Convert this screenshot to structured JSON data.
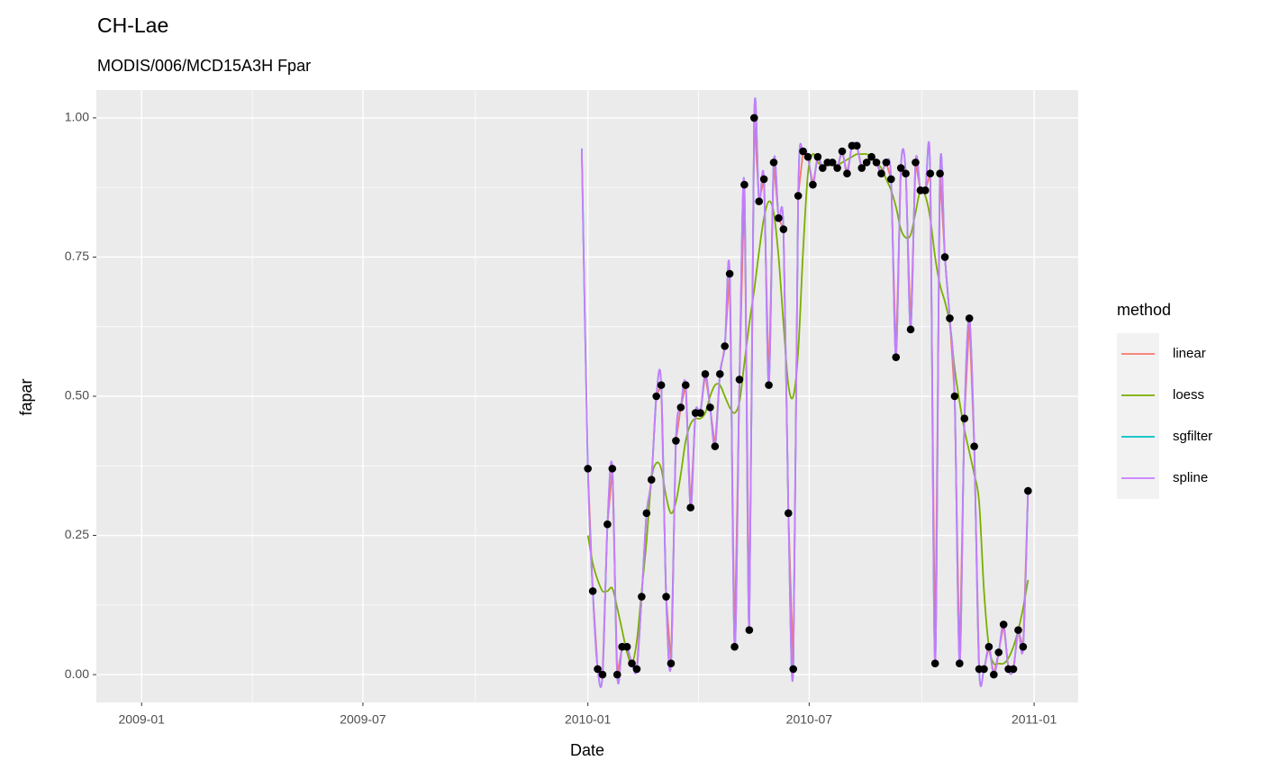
{
  "chart_data": {
    "type": "line",
    "title": "CH-Lae",
    "subtitle": "MODIS/006/MCD15A3H Fpar",
    "x_label": "Date",
    "y_label": "fapar",
    "legend_title": "method",
    "legend_position": "right",
    "grid": true,
    "xlim": [
      "2008-11-25",
      "2011-02-06"
    ],
    "xticks": [
      {
        "value": "2009-01-01",
        "label": "2009-01"
      },
      {
        "value": "2009-07-01",
        "label": "2009-07"
      },
      {
        "value": "2010-01-01",
        "label": "2010-01"
      },
      {
        "value": "2010-07-01",
        "label": "2010-07"
      },
      {
        "value": "2011-01-01",
        "label": "2011-01"
      }
    ],
    "ylim": [
      -0.05,
      1.05
    ],
    "yticks": [
      {
        "value": 0,
        "label": "0.00"
      },
      {
        "value": 0.25,
        "label": "0.25"
      },
      {
        "value": 0.5,
        "label": "0.50"
      },
      {
        "value": 0.75,
        "label": "0.75"
      },
      {
        "value": 1,
        "label": "1.00"
      }
    ],
    "x": [
      "2009-12-27",
      "2010-01-01",
      "2010-01-05",
      "2010-01-09",
      "2010-01-13",
      "2010-01-17",
      "2010-01-21",
      "2010-01-25",
      "2010-01-29",
      "2010-02-02",
      "2010-02-06",
      "2010-02-10",
      "2010-02-14",
      "2010-02-18",
      "2010-02-22",
      "2010-02-26",
      "2010-03-02",
      "2010-03-06",
      "2010-03-10",
      "2010-03-14",
      "2010-03-18",
      "2010-03-22",
      "2010-03-26",
      "2010-03-30",
      "2010-04-03",
      "2010-04-07",
      "2010-04-11",
      "2010-04-15",
      "2010-04-19",
      "2010-04-23",
      "2010-04-27",
      "2010-05-01",
      "2010-05-05",
      "2010-05-09",
      "2010-05-13",
      "2010-05-17",
      "2010-05-21",
      "2010-05-25",
      "2010-05-29",
      "2010-06-02",
      "2010-06-06",
      "2010-06-10",
      "2010-06-14",
      "2010-06-18",
      "2010-06-22",
      "2010-06-26",
      "2010-06-30",
      "2010-07-04",
      "2010-07-08",
      "2010-07-12",
      "2010-07-16",
      "2010-07-20",
      "2010-07-24",
      "2010-07-28",
      "2010-08-01",
      "2010-08-05",
      "2010-08-09",
      "2010-08-13",
      "2010-08-17",
      "2010-08-21",
      "2010-08-25",
      "2010-08-29",
      "2010-09-02",
      "2010-09-06",
      "2010-09-10",
      "2010-09-14",
      "2010-09-18",
      "2010-09-22",
      "2010-09-26",
      "2010-09-30",
      "2010-10-04",
      "2010-10-08",
      "2010-10-12",
      "2010-10-16",
      "2010-10-20",
      "2010-10-24",
      "2010-10-28",
      "2010-11-01",
      "2010-11-05",
      "2010-11-09",
      "2010-11-13",
      "2010-11-17",
      "2010-11-21",
      "2010-11-25",
      "2010-11-29",
      "2010-12-03",
      "2010-12-07",
      "2010-12-11",
      "2010-12-15",
      "2010-12-19",
      "2010-12-23",
      "2010-12-27"
    ],
    "points": {
      "color": "#000000",
      "values": [
        null,
        0.37,
        0.15,
        0.01,
        0.0,
        0.27,
        0.37,
        0.0,
        0.05,
        0.05,
        0.02,
        0.01,
        0.14,
        0.29,
        0.35,
        0.5,
        0.52,
        0.14,
        0.02,
        0.42,
        0.48,
        0.52,
        0.3,
        0.47,
        0.47,
        0.54,
        0.48,
        0.41,
        0.54,
        0.59,
        0.72,
        0.05,
        0.53,
        0.88,
        0.08,
        1.0,
        0.85,
        0.89,
        0.52,
        0.92,
        0.82,
        0.8,
        0.29,
        0.01,
        0.86,
        0.94,
        0.93,
        0.88,
        0.93,
        0.91,
        0.92,
        0.92,
        0.91,
        0.94,
        0.9,
        0.95,
        0.95,
        0.91,
        0.92,
        0.93,
        0.92,
        0.9,
        0.92,
        0.89,
        0.57,
        0.91,
        0.9,
        0.62,
        0.92,
        0.87,
        0.87,
        0.9,
        0.02,
        0.9,
        0.75,
        0.64,
        0.5,
        0.02,
        0.46,
        0.64,
        0.41,
        0.01,
        0.01,
        0.05,
        0.0,
        0.04,
        0.09,
        0.01,
        0.01,
        0.08,
        0.05,
        0.33
      ]
    },
    "series": [
      {
        "name": "linear",
        "color": "#F8766D",
        "smooth": false,
        "values": [
          null,
          0.37,
          0.15,
          0.01,
          0.0,
          0.27,
          0.37,
          0.0,
          0.05,
          0.05,
          0.02,
          0.01,
          0.14,
          0.29,
          0.35,
          0.5,
          0.52,
          0.14,
          0.02,
          0.42,
          0.48,
          0.52,
          0.3,
          0.47,
          0.47,
          0.54,
          0.48,
          0.41,
          0.54,
          0.59,
          0.72,
          0.05,
          0.53,
          0.88,
          0.08,
          1.0,
          0.85,
          0.89,
          0.52,
          0.92,
          0.82,
          0.8,
          0.29,
          0.01,
          0.86,
          0.94,
          0.93,
          0.88,
          0.93,
          0.91,
          0.92,
          0.92,
          0.91,
          0.94,
          0.9,
          0.95,
          0.95,
          0.91,
          0.92,
          0.93,
          0.92,
          0.9,
          0.92,
          0.89,
          0.57,
          0.91,
          0.9,
          0.62,
          0.92,
          0.87,
          0.87,
          0.9,
          0.02,
          0.9,
          0.75,
          0.64,
          0.5,
          0.02,
          0.46,
          0.64,
          0.41,
          0.01,
          0.01,
          0.05,
          0.0,
          0.04,
          0.09,
          0.01,
          0.01,
          0.08,
          0.05,
          0.33
        ]
      },
      {
        "name": "loess",
        "color": "#7CAE00",
        "smooth": true,
        "values": [
          null,
          0.25,
          0.2,
          0.17,
          0.15,
          0.15,
          0.155,
          0.12,
          0.08,
          0.04,
          0.02,
          0.06,
          0.15,
          0.24,
          0.35,
          0.38,
          0.37,
          0.32,
          0.29,
          0.31,
          0.36,
          0.42,
          0.45,
          0.46,
          0.46,
          0.47,
          0.5,
          0.52,
          0.52,
          0.5,
          0.48,
          0.47,
          0.49,
          0.56,
          0.63,
          0.69,
          0.76,
          0.82,
          0.85,
          0.83,
          0.75,
          0.63,
          0.52,
          0.5,
          0.58,
          0.76,
          0.9,
          0.935,
          0.92,
          0.915,
          0.915,
          0.915,
          0.915,
          0.92,
          0.925,
          0.93,
          0.935,
          0.935,
          0.935,
          0.93,
          0.92,
          0.91,
          0.89,
          0.87,
          0.84,
          0.8,
          0.785,
          0.79,
          0.83,
          0.87,
          0.86,
          0.82,
          0.75,
          0.7,
          0.67,
          0.63,
          0.55,
          0.49,
          0.44,
          0.4,
          0.36,
          0.31,
          0.15,
          0.05,
          0.02,
          0.02,
          0.02,
          0.03,
          0.05,
          0.08,
          0.12,
          0.17
        ]
      },
      {
        "name": "sgfilter",
        "color": "#00BFC4",
        "smooth": true,
        "values": [
          0.945,
          0.37,
          0.15,
          0.01,
          0.0,
          0.27,
          0.37,
          0.0,
          0.05,
          0.05,
          0.02,
          0.01,
          0.14,
          0.29,
          0.35,
          0.5,
          0.52,
          0.14,
          0.02,
          0.42,
          0.48,
          0.52,
          0.3,
          0.47,
          0.47,
          0.54,
          0.48,
          0.41,
          0.54,
          0.59,
          0.72,
          0.05,
          0.53,
          0.88,
          0.08,
          1.0,
          0.85,
          0.89,
          0.52,
          0.92,
          0.82,
          0.8,
          0.29,
          0.01,
          0.86,
          0.94,
          0.93,
          0.88,
          0.93,
          0.91,
          0.92,
          0.92,
          0.91,
          0.94,
          0.9,
          0.95,
          0.95,
          0.91,
          0.92,
          0.93,
          0.92,
          0.9,
          0.92,
          0.89,
          0.57,
          0.91,
          0.9,
          0.62,
          0.92,
          0.87,
          0.87,
          0.9,
          0.02,
          0.9,
          0.75,
          0.64,
          0.5,
          0.02,
          0.46,
          0.64,
          0.41,
          0.01,
          0.01,
          0.05,
          0.0,
          0.04,
          0.09,
          0.01,
          0.01,
          0.08,
          0.05,
          0.33
        ]
      },
      {
        "name": "spline",
        "color": "#C77CFF",
        "smooth": true,
        "values": [
          0.945,
          0.37,
          0.15,
          0.01,
          0.0,
          0.27,
          0.37,
          0.0,
          0.05,
          0.05,
          0.02,
          0.01,
          0.14,
          0.29,
          0.35,
          0.5,
          0.52,
          0.14,
          0.02,
          0.42,
          0.48,
          0.52,
          0.3,
          0.47,
          0.47,
          0.54,
          0.48,
          0.41,
          0.54,
          0.59,
          0.72,
          0.05,
          0.53,
          0.88,
          0.08,
          1.0,
          0.85,
          0.89,
          0.52,
          0.92,
          0.82,
          0.8,
          0.29,
          0.01,
          0.86,
          0.94,
          0.93,
          0.88,
          0.93,
          0.91,
          0.92,
          0.92,
          0.91,
          0.94,
          0.9,
          0.95,
          0.95,
          0.91,
          0.92,
          0.93,
          0.92,
          0.9,
          0.92,
          0.89,
          0.57,
          0.91,
          0.9,
          0.62,
          0.92,
          0.87,
          0.87,
          0.9,
          0.02,
          0.9,
          0.75,
          0.64,
          0.5,
          0.02,
          0.46,
          0.64,
          0.41,
          0.01,
          0.01,
          0.05,
          0.0,
          0.04,
          0.09,
          0.01,
          0.01,
          0.08,
          0.05,
          0.33
        ]
      }
    ]
  }
}
